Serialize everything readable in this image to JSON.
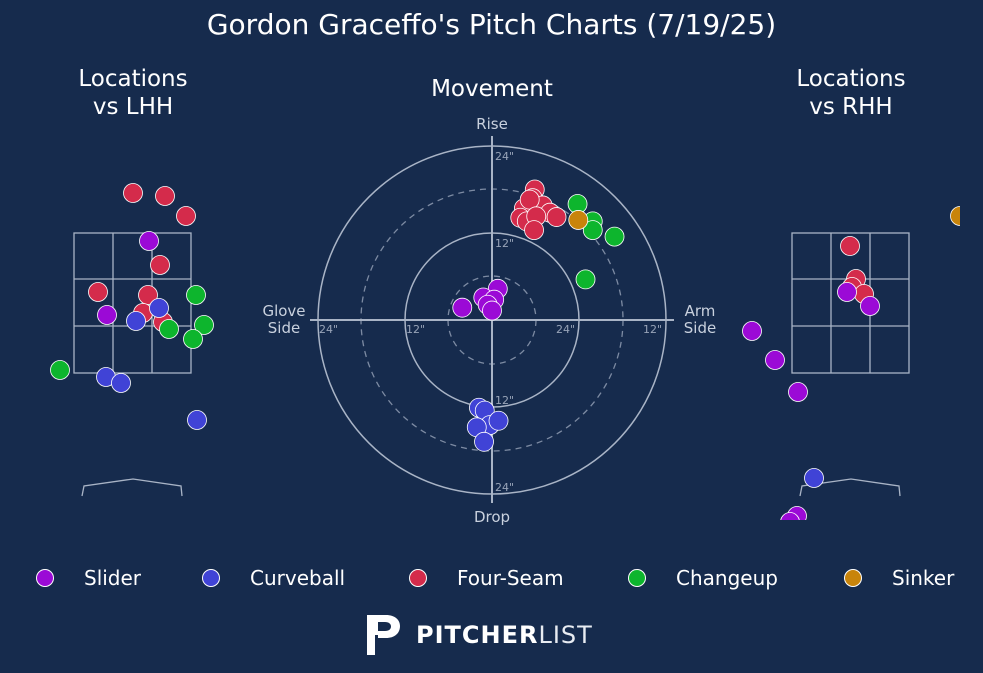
{
  "title": "Gordon Graceffo's Pitch Charts (7/19/25)",
  "panels": {
    "lhh_title": "Locations\nvs LHH",
    "movement_title": "Movement",
    "rhh_title": "Locations\nvs RHH"
  },
  "movement_axes": {
    "top": "Rise",
    "bottom": "Drop",
    "left": "Glove\nSide",
    "right": "Arm\nSide",
    "ring_labels": [
      "24\"",
      "12\"",
      "12\"",
      "24\"",
      "24\"",
      "12\"",
      "12\"",
      "24\""
    ]
  },
  "colors": {
    "background": "#162b4d",
    "Slider": "#9b0ad6",
    "Curveball": "#4043d6",
    "Four-Seam": "#d42b4b",
    "Changeup": "#0db52d",
    "Sinker": "#c8840b"
  },
  "legend": [
    {
      "label": "Slider",
      "color": "#9b0ad6"
    },
    {
      "label": "Curveball",
      "color": "#4043d6"
    },
    {
      "label": "Four-Seam",
      "color": "#d42b4b"
    },
    {
      "label": "Changeup",
      "color": "#0db52d"
    },
    {
      "label": "Sinker",
      "color": "#c8840b"
    }
  ],
  "brand": {
    "bold": "PITCHER",
    "light": "LIST",
    "logo_icon": "pitcherlist-logo-icon"
  },
  "chart_data": [
    {
      "type": "scatter",
      "title": "Movement",
      "x_label_left": "Glove Side",
      "x_label_right": "Arm Side",
      "y_label_top": "Rise",
      "y_label_bottom": "Drop",
      "units": "inches",
      "xlim": [
        -24,
        24
      ],
      "ylim": [
        -24,
        24
      ],
      "series": [
        {
          "name": "Four-Seam",
          "points": [
            [
              5.9,
              18
            ],
            [
              5.6,
              16.8
            ],
            [
              7,
              15.8
            ],
            [
              4.4,
              15.4
            ],
            [
              8,
              14.8
            ],
            [
              5.2,
              16.6
            ],
            [
              3.9,
              14.1
            ],
            [
              4.8,
              13.6
            ],
            [
              6.1,
              14.3
            ],
            [
              8.9,
              14.2
            ],
            [
              5.8,
              12.4
            ]
          ]
        },
        {
          "name": "Changeup",
          "points": [
            [
              11.8,
              16
            ],
            [
              13.9,
              13.6
            ],
            [
              16.9,
              11.5
            ],
            [
              13.9,
              12.4
            ],
            [
              12.9,
              5.6
            ]
          ]
        },
        {
          "name": "Sinker",
          "points": [
            [
              11.9,
              13.8
            ]
          ]
        },
        {
          "name": "Slider",
          "points": [
            [
              0.8,
              4.3
            ],
            [
              -1.2,
              3.1
            ],
            [
              0.3,
              2.8
            ],
            [
              -0.6,
              2.1
            ],
            [
              -4.1,
              1.7
            ],
            [
              0,
              1.3
            ]
          ]
        },
        {
          "name": "Curveball",
          "points": [
            [
              -1.8,
              -12.1
            ],
            [
              -1,
              -12.5
            ],
            [
              -0.3,
              -14.5
            ],
            [
              0.9,
              -13.9
            ],
            [
              -2.1,
              -14.8
            ],
            [
              -1.1,
              -16.8
            ]
          ]
        }
      ]
    },
    {
      "type": "scatter",
      "title": "Locations vs LHH",
      "series": [
        {
          "name": "Four-Seam",
          "points": [
            [
              133,
              193
            ],
            [
              165,
              196
            ],
            [
              186,
              216
            ],
            [
              160,
              265
            ],
            [
              98,
              292
            ],
            [
              148,
              295
            ],
            [
              143,
              313
            ],
            [
              163,
              322
            ]
          ]
        },
        {
          "name": "Slider",
          "points": [
            [
              149,
              241
            ],
            [
              107,
              315
            ]
          ]
        },
        {
          "name": "Curveball",
          "points": [
            [
              159,
              308
            ],
            [
              136,
              321
            ],
            [
              106,
              377
            ],
            [
              121,
              383
            ],
            [
              197,
              420
            ]
          ]
        },
        {
          "name": "Changeup",
          "points": [
            [
              196,
              295
            ],
            [
              169,
              329
            ],
            [
              204,
              325
            ],
            [
              193,
              339
            ],
            [
              60,
              370
            ]
          ]
        }
      ]
    },
    {
      "type": "scatter",
      "title": "Locations vs RHH",
      "series": [
        {
          "name": "Four-Seam",
          "points": [
            [
              850,
              246
            ],
            [
              856,
              279
            ],
            [
              852,
              287
            ],
            [
              864,
              294
            ]
          ]
        },
        {
          "name": "Slider",
          "points": [
            [
              847,
              292
            ],
            [
              870,
              306
            ],
            [
              752,
              331
            ],
            [
              775,
              360
            ],
            [
              798,
              392
            ],
            [
              797,
              516
            ],
            [
              790,
              522
            ]
          ]
        },
        {
          "name": "Curveball",
          "points": [
            [
              814,
              478
            ]
          ]
        },
        {
          "name": "Sinker",
          "points": [
            [
              960,
              216
            ]
          ]
        }
      ]
    }
  ]
}
